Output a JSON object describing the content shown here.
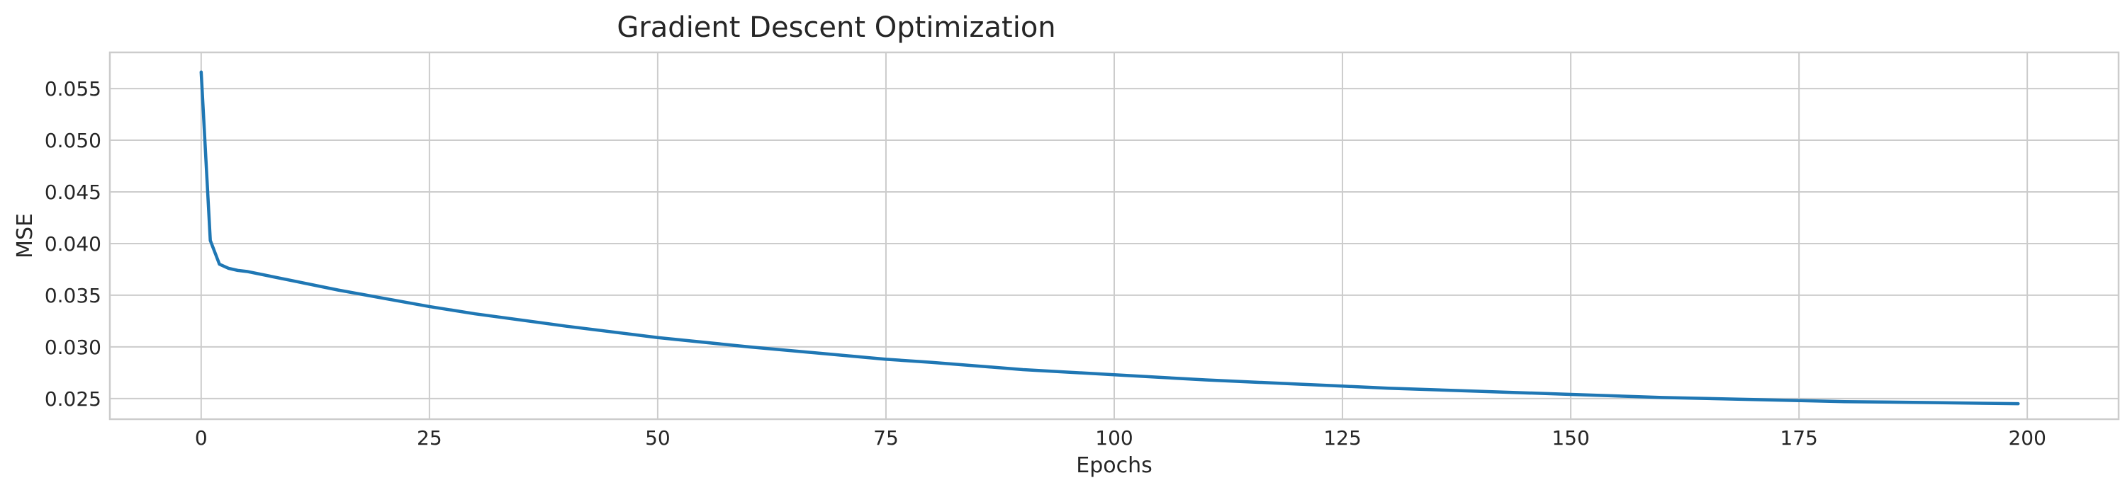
{
  "chart_data": {
    "type": "line",
    "title": "Gradient Descent Optimization",
    "xlabel": "Epochs",
    "ylabel": "MSE",
    "xlim": [
      -10,
      210
    ],
    "ylim": [
      0.023,
      0.0585
    ],
    "xticks": [
      0,
      25,
      50,
      75,
      100,
      125,
      150,
      175,
      200
    ],
    "yticks": [
      0.025,
      0.03,
      0.035,
      0.04,
      0.045,
      0.05,
      0.055
    ],
    "xtick_labels": [
      "0",
      "25",
      "50",
      "75",
      "100",
      "125",
      "150",
      "175",
      "200"
    ],
    "ytick_labels": [
      "0.025",
      "0.030",
      "0.035",
      "0.040",
      "0.045",
      "0.050",
      "0.055"
    ],
    "grid": true,
    "color": "#1f77b4",
    "series": [
      {
        "x": [
          0,
          1,
          2,
          3,
          4,
          5,
          10,
          15,
          20,
          25,
          30,
          40,
          50,
          60,
          70,
          75,
          80,
          90,
          100,
          110,
          120,
          125,
          130,
          140,
          150,
          160,
          170,
          175,
          180,
          190,
          199
        ],
        "values": [
          0.0566,
          0.0403,
          0.038,
          0.0376,
          0.0374,
          0.0373,
          0.0364,
          0.0355,
          0.0347,
          0.0339,
          0.0332,
          0.032,
          0.0309,
          0.03,
          0.0292,
          0.0288,
          0.0285,
          0.0278,
          0.0273,
          0.0268,
          0.0264,
          0.0262,
          0.026,
          0.0257,
          0.0254,
          0.0251,
          0.0249,
          0.0248,
          0.0247,
          0.0246,
          0.0245
        ]
      }
    ]
  }
}
